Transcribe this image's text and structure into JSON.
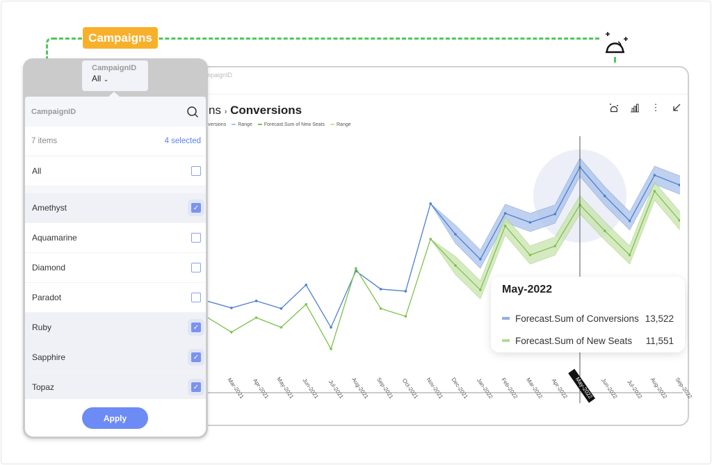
{
  "badge": {
    "label": "Campaigns"
  },
  "card": {
    "filter_label": "CampaignID",
    "title_parent": "Campaigns",
    "title_sep": "›",
    "title": "Conversions",
    "legend": [
      {
        "label": "Forecast.Sum of Conversions",
        "color": "#4a7fd0"
      },
      {
        "label": "Range",
        "color": "#a9c2ea"
      },
      {
        "label": "Forecast.Sum of New Seats",
        "color": "#7dc24a"
      },
      {
        "label": "Range",
        "color": "#c8e3ad"
      }
    ],
    "tools": [
      "forecast-icon",
      "chart-type-icon",
      "more-icon",
      "collapse-icon"
    ]
  },
  "tooltip": {
    "title": "May-2022",
    "rows": [
      {
        "label": "Forecast.Sum of Conversions",
        "value": "13,522",
        "color": "#91afe0"
      },
      {
        "label": "Forecast.Sum of New Seats",
        "value": "11,551",
        "color": "#b4da93"
      }
    ]
  },
  "popup": {
    "chip_label": "CampaignID",
    "chip_value": "All",
    "search_label": "CampaignID",
    "items_count": "7 items",
    "selected_count": "4 selected",
    "all_label": "All",
    "items": [
      {
        "label": "Amethyst",
        "checked": true
      },
      {
        "label": "Aquamarine",
        "checked": false
      },
      {
        "label": "Diamond",
        "checked": false
      },
      {
        "label": "Paradot",
        "checked": false
      },
      {
        "label": "Ruby",
        "checked": true
      },
      {
        "label": "Sapphire",
        "checked": true
      },
      {
        "label": "Topaz",
        "checked": true
      }
    ],
    "apply_label": "Apply"
  },
  "chart_data": {
    "type": "line",
    "categories": [
      "Feb-2021",
      "Mar-2021",
      "Apr-2021",
      "May-2021",
      "Jun-2021",
      "Jul-2021",
      "Aug-2021",
      "Sep-2021",
      "Oct-2021",
      "Nov-2021",
      "Dec-2021",
      "Jan-2022",
      "Feb-2022",
      "Mar-2022",
      "Apr-2022",
      "May-2022",
      "Jun-2022",
      "Jul-2022",
      "Aug-2022",
      "Sep-2022"
    ],
    "highlighted_category": "May-2022",
    "forecast_start": "Nov-2021",
    "range_halfwidth": 480,
    "series": [
      {
        "name": "Forecast.Sum of Conversions",
        "color": "#4a7fd0",
        "range_color": "#a9c2ea",
        "values": [
          6500,
          6130,
          6500,
          6100,
          7340,
          5110,
          8070,
          7120,
          7010,
          11610,
          10000,
          8690,
          11100,
          10620,
          11060,
          13522,
          12010,
          10700,
          13100,
          12590
        ]
      },
      {
        "name": "Forecast.Sum of New Seats",
        "color": "#7dc24a",
        "range_color": "#c8e3ad",
        "values": [
          5660,
          4860,
          5620,
          5110,
          6320,
          3980,
          8210,
          6100,
          5690,
          9750,
          8360,
          7080,
          10440,
          8910,
          9380,
          11551,
          10180,
          8910,
          12260,
          10730
        ]
      }
    ],
    "grid": false
  }
}
